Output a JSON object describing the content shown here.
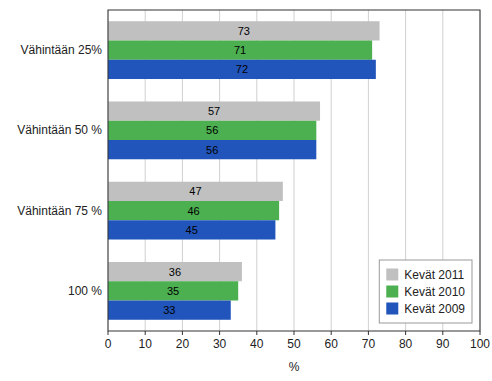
{
  "chart_data": {
    "type": "bar",
    "orientation": "horizontal",
    "categories": [
      "Vähintään 25%",
      "Vähintään 50 %",
      "Vähintään 75 %",
      "100 %"
    ],
    "series": [
      {
        "name": "Kevät 2011",
        "color": "#C0C0C0",
        "values": [
          73,
          57,
          47,
          36
        ]
      },
      {
        "name": "Kevät 2010",
        "color": "#4CAF50",
        "values": [
          71,
          56,
          46,
          35
        ]
      },
      {
        "name": "Kevät 2009",
        "color": "#2255BB",
        "values": [
          72,
          56,
          45,
          33
        ]
      }
    ],
    "xlabel": "%",
    "xlim": [
      0,
      100
    ],
    "xticks": [
      0,
      10,
      20,
      30,
      40,
      50,
      60,
      70,
      80,
      90,
      100
    ],
    "grid": true,
    "legend": "lower right",
    "data_labels": true
  }
}
